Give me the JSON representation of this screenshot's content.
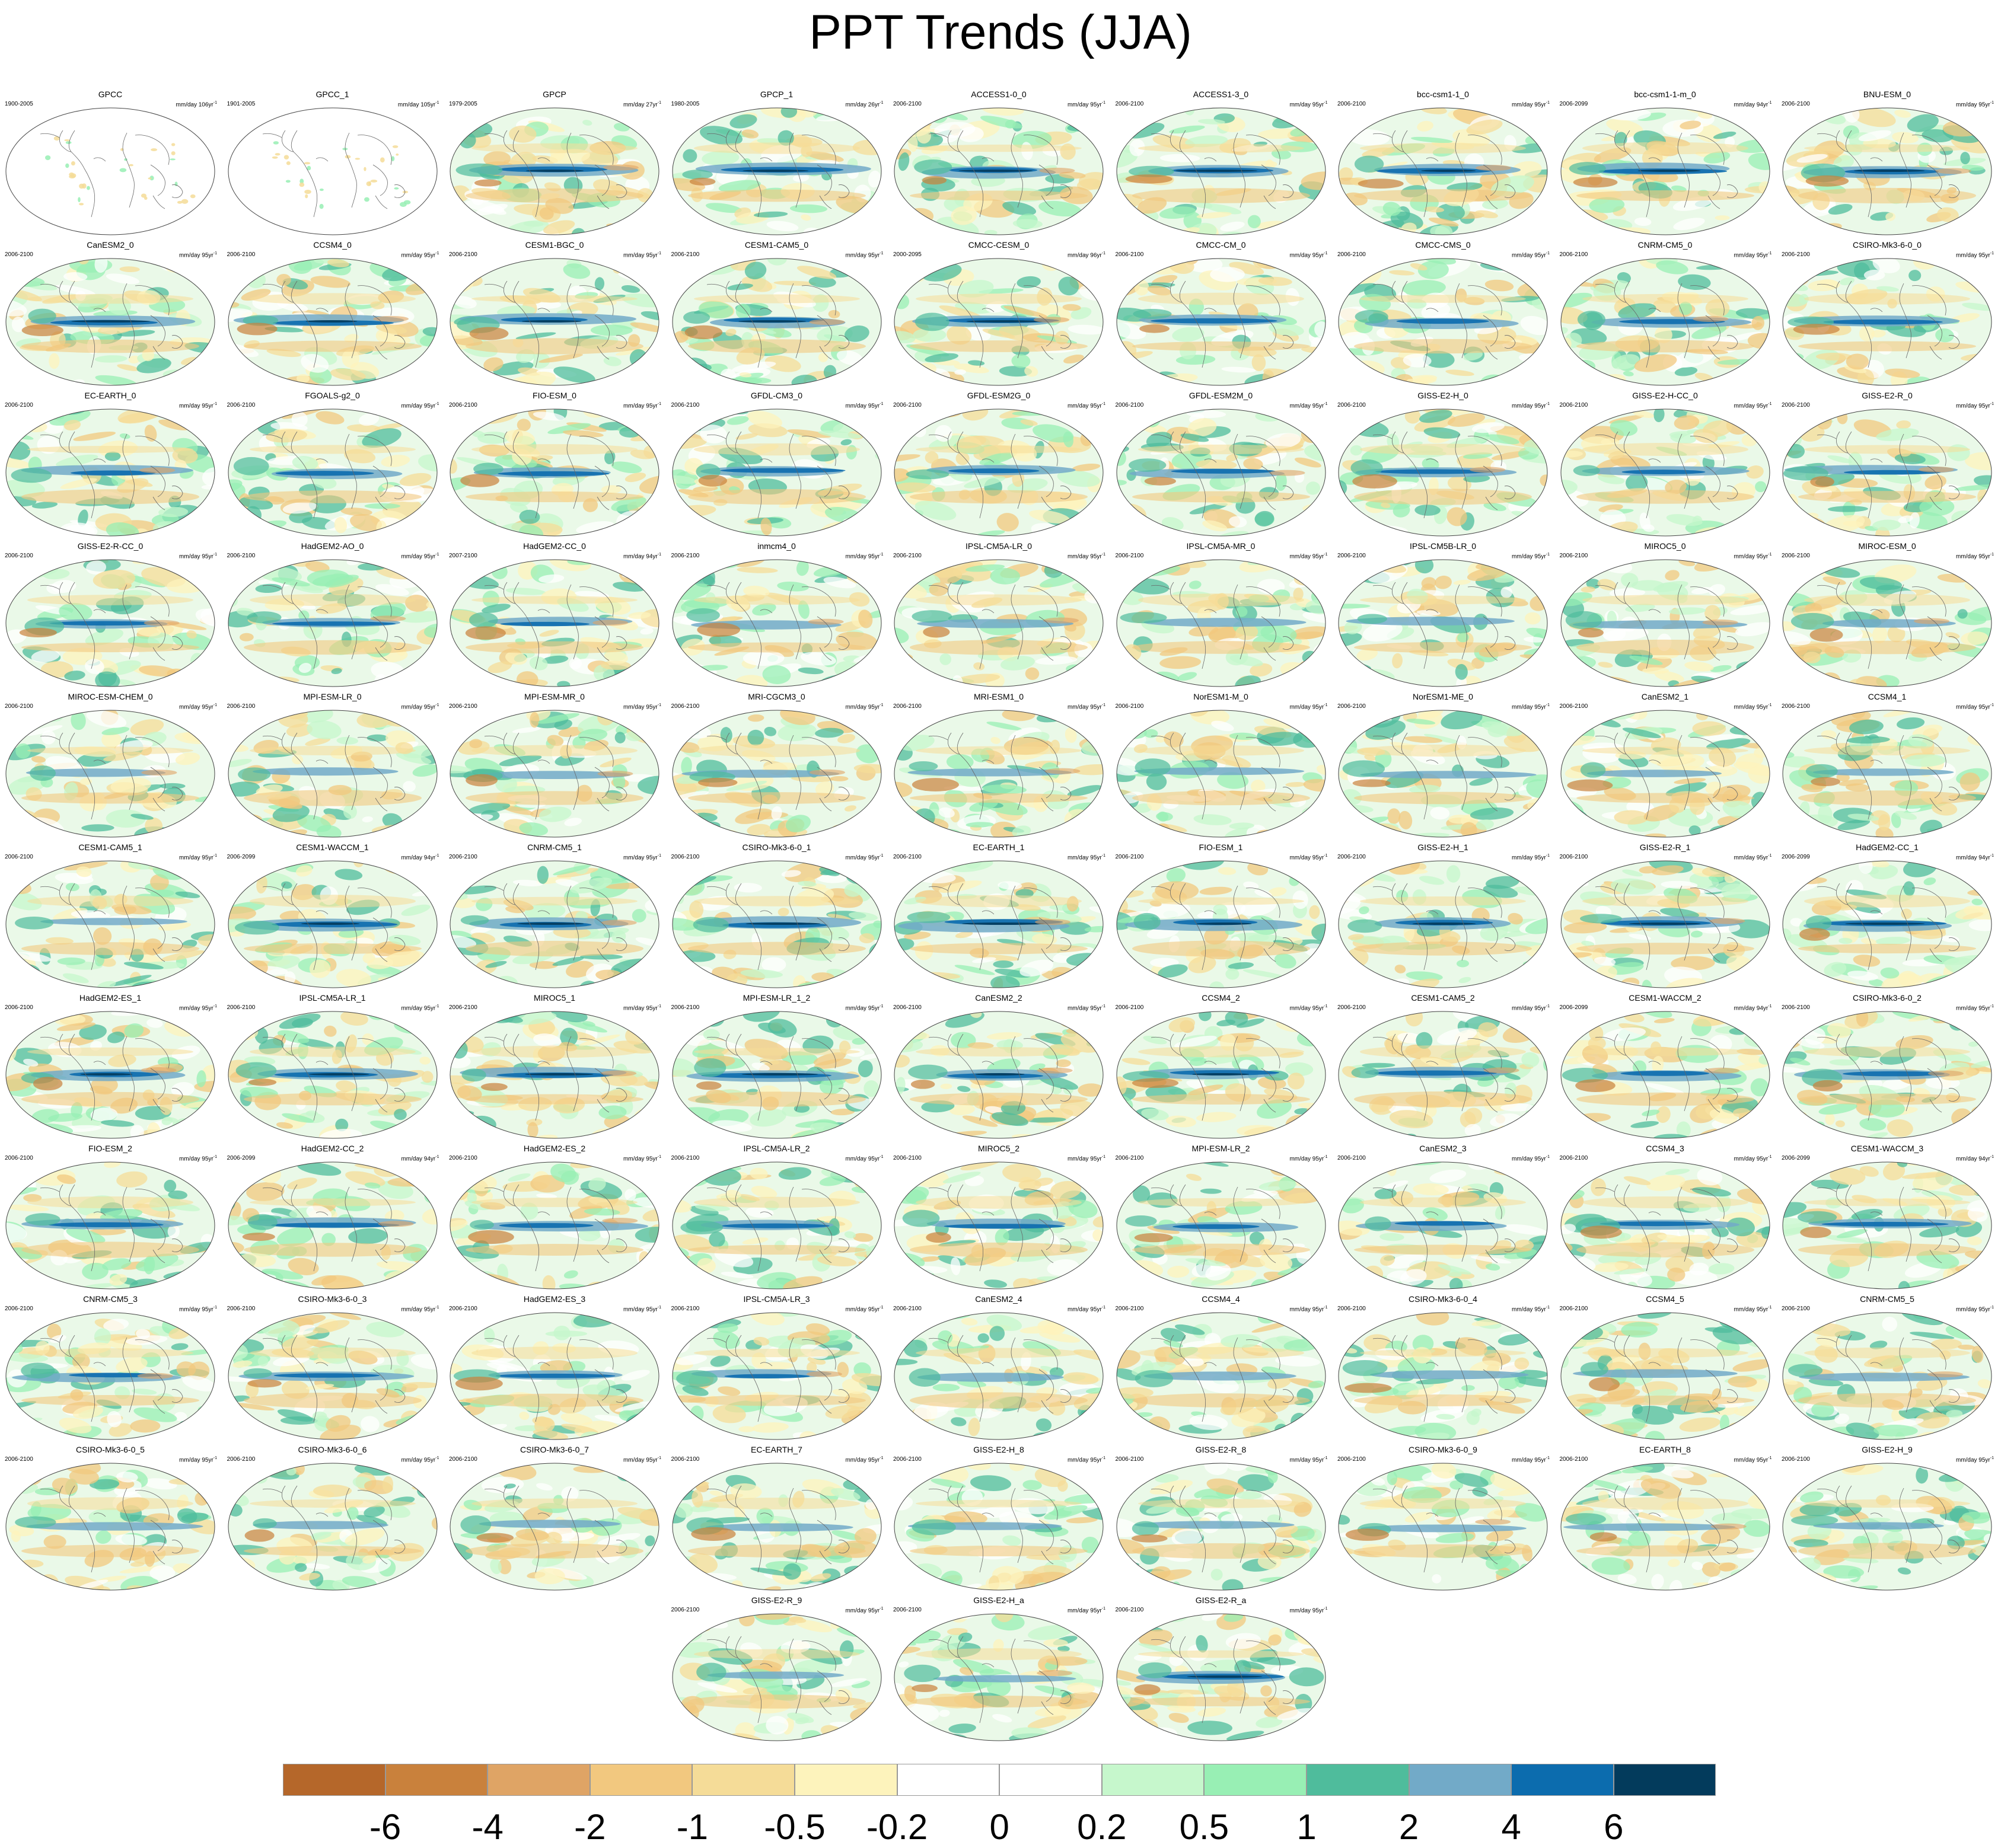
{
  "title": "PPT Trends (JJA)",
  "panels": [
    {
      "name": "GPCC",
      "period": "1900-2005",
      "units": "mm/day 106yr",
      "sparse": true
    },
    {
      "name": "GPCC_1",
      "period": "1901-2005",
      "units": "mm/day 105yr",
      "sparse": true
    },
    {
      "name": "GPCP",
      "period": "1979-2005",
      "units": "mm/day 27yr"
    },
    {
      "name": "GPCP_1",
      "period": "1980-2005",
      "units": "mm/day 26yr"
    },
    {
      "name": "ACCESS1-0_0",
      "period": "2006-2100",
      "units": "mm/day 95yr"
    },
    {
      "name": "ACCESS1-3_0",
      "period": "2006-2100",
      "units": "mm/day 95yr"
    },
    {
      "name": "bcc-csm1-1_0",
      "period": "2006-2100",
      "units": "mm/day 95yr"
    },
    {
      "name": "bcc-csm1-1-m_0",
      "period": "2006-2099",
      "units": "mm/day 94yr"
    },
    {
      "name": "BNU-ESM_0",
      "period": "2006-2100",
      "units": "mm/day 95yr"
    },
    {
      "name": "CanESM2_0",
      "period": "2006-2100",
      "units": "mm/day 95yr"
    },
    {
      "name": "CCSM4_0",
      "period": "2006-2100",
      "units": "mm/day 95yr"
    },
    {
      "name": "CESM1-BGC_0",
      "period": "2006-2100",
      "units": "mm/day 95yr"
    },
    {
      "name": "CESM1-CAM5_0",
      "period": "2006-2100",
      "units": "mm/day 95yr"
    },
    {
      "name": "CMCC-CESM_0",
      "period": "2000-2095",
      "units": "mm/day 96yr"
    },
    {
      "name": "CMCC-CM_0",
      "period": "2006-2100",
      "units": "mm/day 95yr"
    },
    {
      "name": "CMCC-CMS_0",
      "period": "2006-2100",
      "units": "mm/day 95yr"
    },
    {
      "name": "CNRM-CM5_0",
      "period": "2006-2100",
      "units": "mm/day 95yr"
    },
    {
      "name": "CSIRO-Mk3-6-0_0",
      "period": "2006-2100",
      "units": "mm/day 95yr"
    },
    {
      "name": "EC-EARTH_0",
      "period": "2006-2100",
      "units": "mm/day 95yr"
    },
    {
      "name": "FGOALS-g2_0",
      "period": "2006-2100",
      "units": "mm/day 95yr"
    },
    {
      "name": "FIO-ESM_0",
      "period": "2006-2100",
      "units": "mm/day 95yr"
    },
    {
      "name": "GFDL-CM3_0",
      "period": "2006-2100",
      "units": "mm/day 95yr"
    },
    {
      "name": "GFDL-ESM2G_0",
      "period": "2006-2100",
      "units": "mm/day 95yr"
    },
    {
      "name": "GFDL-ESM2M_0",
      "period": "2006-2100",
      "units": "mm/day 95yr"
    },
    {
      "name": "GISS-E2-H_0",
      "period": "2006-2100",
      "units": "mm/day 95yr"
    },
    {
      "name": "GISS-E2-H-CC_0",
      "period": "2006-2100",
      "units": "mm/day 95yr"
    },
    {
      "name": "GISS-E2-R_0",
      "period": "2006-2100",
      "units": "mm/day 95yr"
    },
    {
      "name": "GISS-E2-R-CC_0",
      "period": "2006-2100",
      "units": "mm/day 95yr"
    },
    {
      "name": "HadGEM2-AO_0",
      "period": "2006-2100",
      "units": "mm/day 95yr"
    },
    {
      "name": "HadGEM2-CC_0",
      "period": "2007-2100",
      "units": "mm/day 94yr"
    },
    {
      "name": "inmcm4_0",
      "period": "2006-2100",
      "units": "mm/day 95yr"
    },
    {
      "name": "IPSL-CM5A-LR_0",
      "period": "2006-2100",
      "units": "mm/day 95yr"
    },
    {
      "name": "IPSL-CM5A-MR_0",
      "period": "2006-2100",
      "units": "mm/day 95yr"
    },
    {
      "name": "IPSL-CM5B-LR_0",
      "period": "2006-2100",
      "units": "mm/day 95yr"
    },
    {
      "name": "MIROC5_0",
      "period": "2006-2100",
      "units": "mm/day 95yr"
    },
    {
      "name": "MIROC-ESM_0",
      "period": "2006-2100",
      "units": "mm/day 95yr"
    },
    {
      "name": "MIROC-ESM-CHEM_0",
      "period": "2006-2100",
      "units": "mm/day 95yr"
    },
    {
      "name": "MPI-ESM-LR_0",
      "period": "2006-2100",
      "units": "mm/day 95yr"
    },
    {
      "name": "MPI-ESM-MR_0",
      "period": "2006-2100",
      "units": "mm/day 95yr"
    },
    {
      "name": "MRI-CGCM3_0",
      "period": "2006-2100",
      "units": "mm/day 95yr"
    },
    {
      "name": "MRI-ESM1_0",
      "period": "2006-2100",
      "units": "mm/day 95yr"
    },
    {
      "name": "NorESM1-M_0",
      "period": "2006-2100",
      "units": "mm/day 95yr"
    },
    {
      "name": "NorESM1-ME_0",
      "period": "2006-2100",
      "units": "mm/day 95yr"
    },
    {
      "name": "CanESM2_1",
      "period": "2006-2100",
      "units": "mm/day 95yr"
    },
    {
      "name": "CCSM4_1",
      "period": "2006-2100",
      "units": "mm/day 95yr"
    },
    {
      "name": "CESM1-CAM5_1",
      "period": "2006-2100",
      "units": "mm/day 95yr"
    },
    {
      "name": "CESM1-WACCM_1",
      "period": "2006-2099",
      "units": "mm/day 94yr"
    },
    {
      "name": "CNRM-CM5_1",
      "period": "2006-2100",
      "units": "mm/day 95yr"
    },
    {
      "name": "CSIRO-Mk3-6-0_1",
      "period": "2006-2100",
      "units": "mm/day 95yr"
    },
    {
      "name": "EC-EARTH_1",
      "period": "2006-2100",
      "units": "mm/day 95yr"
    },
    {
      "name": "FIO-ESM_1",
      "period": "2006-2100",
      "units": "mm/day 95yr"
    },
    {
      "name": "GISS-E2-H_1",
      "period": "2006-2100",
      "units": "mm/day 95yr"
    },
    {
      "name": "GISS-E2-R_1",
      "period": "2006-2100",
      "units": "mm/day 95yr"
    },
    {
      "name": "HadGEM2-CC_1",
      "period": "2006-2099",
      "units": "mm/day 94yr"
    },
    {
      "name": "HadGEM2-ES_1",
      "period": "2006-2100",
      "units": "mm/day 95yr"
    },
    {
      "name": "IPSL-CM5A-LR_1",
      "period": "2006-2100",
      "units": "mm/day 95yr"
    },
    {
      "name": "MIROC5_1",
      "period": "2006-2100",
      "units": "mm/day 95yr"
    },
    {
      "name": "MPI-ESM-LR_1_2",
      "period": "2006-2100",
      "units": "mm/day 95yr"
    },
    {
      "name": "CanESM2_2",
      "period": "2006-2100",
      "units": "mm/day 95yr"
    },
    {
      "name": "CCSM4_2",
      "period": "2006-2100",
      "units": "mm/day 95yr"
    },
    {
      "name": "CESM1-CAM5_2",
      "period": "2006-2100",
      "units": "mm/day 95yr"
    },
    {
      "name": "CESM1-WACCM_2",
      "period": "2006-2099",
      "units": "mm/day 94yr"
    },
    {
      "name": "CSIRO-Mk3-6-0_2",
      "period": "2006-2100",
      "units": "mm/day 95yr"
    },
    {
      "name": "FIO-ESM_2",
      "period": "2006-2100",
      "units": "mm/day 95yr"
    },
    {
      "name": "HadGEM2-CC_2",
      "period": "2006-2099",
      "units": "mm/day 94yr"
    },
    {
      "name": "HadGEM2-ES_2",
      "period": "2006-2100",
      "units": "mm/day 95yr"
    },
    {
      "name": "IPSL-CM5A-LR_2",
      "period": "2006-2100",
      "units": "mm/day 95yr"
    },
    {
      "name": "MIROC5_2",
      "period": "2006-2100",
      "units": "mm/day 95yr"
    },
    {
      "name": "MPI-ESM-LR_2",
      "period": "2006-2100",
      "units": "mm/day 95yr"
    },
    {
      "name": "CanESM2_3",
      "period": "2006-2100",
      "units": "mm/day 95yr"
    },
    {
      "name": "CCSM4_3",
      "period": "2006-2100",
      "units": "mm/day 95yr"
    },
    {
      "name": "CESM1-WACCM_3",
      "period": "2006-2099",
      "units": "mm/day 94yr"
    },
    {
      "name": "CNRM-CM5_3",
      "period": "2006-2100",
      "units": "mm/day 95yr"
    },
    {
      "name": "CSIRO-Mk3-6-0_3",
      "period": "2006-2100",
      "units": "mm/day 95yr"
    },
    {
      "name": "HadGEM2-ES_3",
      "period": "2006-2100",
      "units": "mm/day 95yr"
    },
    {
      "name": "IPSL-CM5A-LR_3",
      "period": "2006-2100",
      "units": "mm/day 95yr"
    },
    {
      "name": "CanESM2_4",
      "period": "2006-2100",
      "units": "mm/day 95yr"
    },
    {
      "name": "CCSM4_4",
      "period": "2006-2100",
      "units": "mm/day 95yr"
    },
    {
      "name": "CSIRO-Mk3-6-0_4",
      "period": "2006-2100",
      "units": "mm/day 95yr"
    },
    {
      "name": "CCSM4_5",
      "period": "2006-2100",
      "units": "mm/day 95yr"
    },
    {
      "name": "CNRM-CM5_5",
      "period": "2006-2100",
      "units": "mm/day 95yr"
    },
    {
      "name": "CSIRO-Mk3-6-0_5",
      "period": "2006-2100",
      "units": "mm/day 95yr"
    },
    {
      "name": "CSIRO-Mk3-6-0_6",
      "period": "2006-2100",
      "units": "mm/day 95yr"
    },
    {
      "name": "CSIRO-Mk3-6-0_7",
      "period": "2006-2100",
      "units": "mm/day 95yr"
    },
    {
      "name": "EC-EARTH_7",
      "period": "2006-2100",
      "units": "mm/day 95yr"
    },
    {
      "name": "GISS-E2-H_8",
      "period": "2006-2100",
      "units": "mm/day 95yr"
    },
    {
      "name": "GISS-E2-R_8",
      "period": "2006-2100",
      "units": "mm/day 95yr"
    },
    {
      "name": "CSIRO-Mk3-6-0_9",
      "period": "2006-2100",
      "units": "mm/day 95yr"
    },
    {
      "name": "EC-EARTH_8",
      "period": "2006-2100",
      "units": "mm/day 95yr"
    },
    {
      "name": "GISS-E2-H_9",
      "period": "2006-2100",
      "units": "mm/day 95yr"
    },
    {
      "name": "GISS-E2-R_9",
      "period": "2006-2100",
      "units": "mm/day 95yr"
    },
    {
      "name": "GISS-E2-H_a",
      "period": "2006-2100",
      "units": "mm/day 95yr"
    },
    {
      "name": "GISS-E2-R_a",
      "period": "2006-2100",
      "units": "mm/day 95yr"
    }
  ],
  "colorbar": {
    "labels": [
      "-6",
      "-4",
      "-2",
      "-1",
      "-0.5",
      "-0.2",
      "0",
      "0.2",
      "0.5",
      "1",
      "2",
      "4",
      "6"
    ],
    "colors": [
      "#b5672a",
      "#c9813c",
      "#dfa465",
      "#f2c87f",
      "#f5dc98",
      "#fdf3bc",
      "#ffffff",
      "#ffffff",
      "#c6f7cc",
      "#98efb4",
      "#4fbc9c",
      "#72aac8",
      "#0c6cae",
      "#033b5c"
    ]
  }
}
